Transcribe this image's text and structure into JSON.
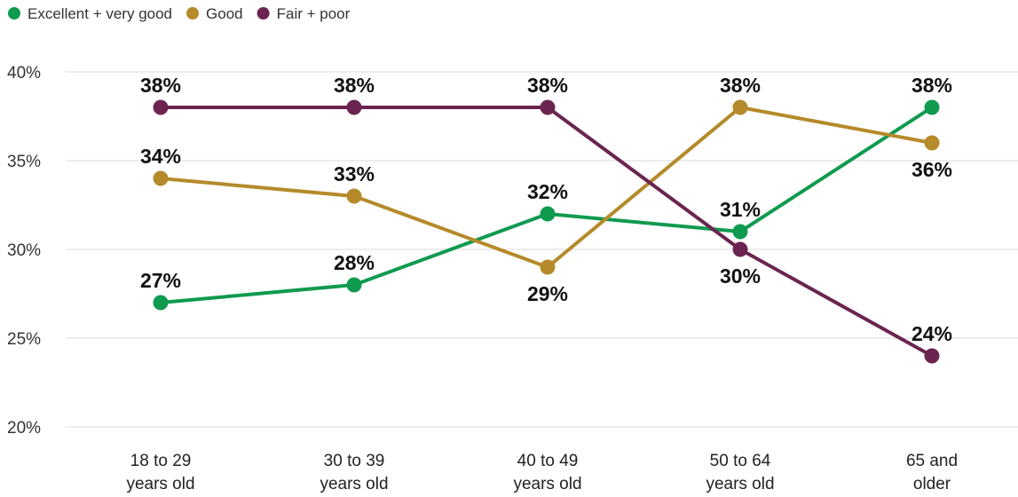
{
  "chart_data": {
    "type": "line",
    "title": "",
    "xlabel": "",
    "ylabel": "",
    "categories": [
      [
        "18 to 29",
        "years old"
      ],
      [
        "30 to 39",
        "years old"
      ],
      [
        "40 to 49",
        "years old"
      ],
      [
        "50 to 64",
        "years old"
      ],
      [
        "65 and",
        "older"
      ]
    ],
    "ylim": [
      20,
      40
    ],
    "yticks": [
      20,
      25,
      30,
      35,
      40
    ],
    "ytick_labels": [
      "20%",
      "25%",
      "30%",
      "35%",
      "40%"
    ],
    "grid": true,
    "legend_placement": "top-left",
    "series": [
      {
        "name": "Excellent + very good",
        "color": "#0f9a4f",
        "values": [
          27,
          28,
          32,
          31,
          38
        ],
        "labels": [
          "27%",
          "28%",
          "32%",
          "31%",
          "38%"
        ],
        "label_pos": [
          "above",
          "above",
          "above",
          "above",
          "above"
        ]
      },
      {
        "name": "Good",
        "color": "#b58a2a",
        "values": [
          34,
          33,
          29,
          38,
          36
        ],
        "labels": [
          "34%",
          "33%",
          "29%",
          "38%",
          "36%"
        ],
        "label_pos": [
          "above",
          "above",
          "below",
          "above",
          "below"
        ]
      },
      {
        "name": "Fair + poor",
        "color": "#6b2450",
        "values": [
          38,
          38,
          38,
          30,
          24
        ],
        "labels": [
          "38%",
          "38%",
          "38%",
          "30%",
          "24%"
        ],
        "label_pos": [
          "above",
          "above",
          "above",
          "below",
          "above"
        ]
      }
    ]
  }
}
